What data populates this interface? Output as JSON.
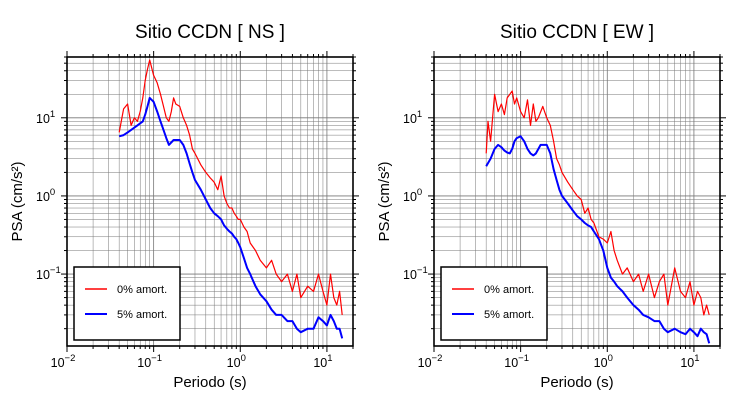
{
  "chart_data": [
    {
      "type": "line",
      "title": "Sitio CCDN [ NS ]",
      "xlabel": "Periodo (s)",
      "ylabel": "PSA (cm/s²)",
      "xscale": "log",
      "yscale": "log",
      "xlim": [
        0.01,
        20
      ],
      "ylim": [
        0.012,
        60
      ],
      "xticks": [
        {
          "value": 0.01,
          "base": "10",
          "exp": "−2"
        },
        {
          "value": 0.1,
          "base": "10",
          "exp": "−1"
        },
        {
          "value": 1,
          "base": "10",
          "exp": "0"
        },
        {
          "value": 10,
          "base": "10",
          "exp": "1"
        }
      ],
      "yticks": [
        {
          "value": 0.1,
          "base": "10",
          "exp": "−1"
        },
        {
          "value": 1,
          "base": "10",
          "exp": "0"
        },
        {
          "value": 10,
          "base": "10",
          "exp": "1"
        }
      ],
      "grid": true,
      "legend_position": "bottom-left",
      "series": [
        {
          "name": "0% amort.",
          "color": "#ff0000",
          "x": [
            0.04,
            0.045,
            0.05,
            0.055,
            0.06,
            0.065,
            0.07,
            0.075,
            0.08,
            0.085,
            0.09,
            0.1,
            0.11,
            0.12,
            0.13,
            0.14,
            0.15,
            0.16,
            0.17,
            0.18,
            0.2,
            0.22,
            0.24,
            0.26,
            0.28,
            0.3,
            0.35,
            0.4,
            0.45,
            0.5,
            0.55,
            0.6,
            0.65,
            0.7,
            0.75,
            0.8,
            0.85,
            0.9,
            0.95,
            1.0,
            1.1,
            1.2,
            1.3,
            1.5,
            1.7,
            2.0,
            2.3,
            2.6,
            3.0,
            3.5,
            4.0,
            4.5,
            5.0,
            6.0,
            7.0,
            8.0,
            9.0,
            10.0,
            11.0,
            12.0,
            13.0,
            14.0,
            15.0
          ],
          "y": [
            6.5,
            13,
            15,
            8,
            10,
            9,
            12,
            18,
            30,
            42,
            55,
            35,
            28,
            20,
            14,
            10,
            9,
            12,
            18,
            15,
            14,
            10,
            8,
            6,
            4,
            3.5,
            2.5,
            2.0,
            1.7,
            1.5,
            1.2,
            1.8,
            1.0,
            0.8,
            0.7,
            0.7,
            0.6,
            0.55,
            0.5,
            0.5,
            0.4,
            0.35,
            0.25,
            0.2,
            0.15,
            0.12,
            0.15,
            0.1,
            0.08,
            0.1,
            0.06,
            0.1,
            0.05,
            0.07,
            0.06,
            0.1,
            0.06,
            0.04,
            0.1,
            0.05,
            0.04,
            0.06,
            0.03
          ]
        },
        {
          "name": "5% amort.",
          "color": "#0000ff",
          "x": [
            0.04,
            0.045,
            0.05,
            0.055,
            0.06,
            0.065,
            0.07,
            0.075,
            0.08,
            0.085,
            0.09,
            0.1,
            0.11,
            0.12,
            0.13,
            0.14,
            0.15,
            0.17,
            0.2,
            0.22,
            0.24,
            0.26,
            0.28,
            0.3,
            0.35,
            0.4,
            0.45,
            0.5,
            0.55,
            0.6,
            0.65,
            0.7,
            0.75,
            0.8,
            0.85,
            0.9,
            0.95,
            1.0,
            1.1,
            1.2,
            1.3,
            1.5,
            1.7,
            2.0,
            2.3,
            2.6,
            3.0,
            3.5,
            4.0,
            4.5,
            5.0,
            6.0,
            7.0,
            8.0,
            9.0,
            10.0,
            11.0,
            12.0,
            13.0,
            14.0,
            15.0
          ],
          "y": [
            5.8,
            6.0,
            6.5,
            7,
            7.5,
            8,
            8.5,
            9,
            11,
            14,
            18,
            16,
            12,
            9,
            7,
            5.5,
            4.5,
            5.2,
            5.2,
            4.5,
            3.5,
            2.6,
            2.0,
            1.6,
            1.2,
            0.9,
            0.7,
            0.6,
            0.55,
            0.5,
            0.42,
            0.38,
            0.35,
            0.33,
            0.3,
            0.28,
            0.25,
            0.22,
            0.16,
            0.12,
            0.1,
            0.07,
            0.055,
            0.045,
            0.035,
            0.03,
            0.03,
            0.025,
            0.025,
            0.02,
            0.018,
            0.02,
            0.02,
            0.028,
            0.025,
            0.022,
            0.03,
            0.025,
            0.02,
            0.02,
            0.015
          ]
        }
      ]
    },
    {
      "type": "line",
      "title": "Sitio CCDN [ EW ]",
      "xlabel": "Periodo (s)",
      "ylabel": "PSA (cm/s²)",
      "xscale": "log",
      "yscale": "log",
      "xlim": [
        0.01,
        20
      ],
      "ylim": [
        0.012,
        60
      ],
      "xticks": [
        {
          "value": 0.01,
          "base": "10",
          "exp": "−2"
        },
        {
          "value": 0.1,
          "base": "10",
          "exp": "−1"
        },
        {
          "value": 1,
          "base": "10",
          "exp": "0"
        },
        {
          "value": 10,
          "base": "10",
          "exp": "1"
        }
      ],
      "yticks": [
        {
          "value": 0.1,
          "base": "10",
          "exp": "−1"
        },
        {
          "value": 1,
          "base": "10",
          "exp": "0"
        },
        {
          "value": 10,
          "base": "10",
          "exp": "1"
        }
      ],
      "grid": true,
      "legend_position": "bottom-left",
      "series": [
        {
          "name": "0% amort.",
          "color": "#ff0000",
          "x": [
            0.04,
            0.042,
            0.045,
            0.05,
            0.055,
            0.06,
            0.065,
            0.07,
            0.075,
            0.08,
            0.085,
            0.09,
            0.1,
            0.11,
            0.12,
            0.13,
            0.14,
            0.15,
            0.16,
            0.18,
            0.2,
            0.22,
            0.24,
            0.26,
            0.28,
            0.3,
            0.35,
            0.4,
            0.45,
            0.5,
            0.55,
            0.6,
            0.65,
            0.7,
            0.8,
            0.9,
            1.0,
            1.1,
            1.2,
            1.3,
            1.5,
            1.7,
            2.0,
            2.3,
            2.6,
            3.0,
            3.5,
            4.0,
            4.5,
            5.0,
            6.0,
            7.0,
            8.0,
            9.0,
            10.0,
            11.0,
            12.0,
            13.0,
            14.0,
            15.0
          ],
          "y": [
            3.5,
            9,
            5,
            20,
            12,
            15,
            11,
            18,
            20,
            22,
            15,
            18,
            12,
            10,
            17,
            8,
            15,
            9,
            10,
            14,
            10,
            8,
            5,
            3,
            2.5,
            2.0,
            1.5,
            1.2,
            1.0,
            0.9,
            0.6,
            0.7,
            0.5,
            0.45,
            0.3,
            0.28,
            0.25,
            0.35,
            0.2,
            0.15,
            0.1,
            0.12,
            0.08,
            0.1,
            0.06,
            0.1,
            0.05,
            0.08,
            0.1,
            0.04,
            0.12,
            0.06,
            0.05,
            0.08,
            0.04,
            0.06,
            0.05,
            0.03,
            0.04,
            0.03
          ]
        },
        {
          "name": "5% amort.",
          "color": "#0000ff",
          "x": [
            0.04,
            0.045,
            0.05,
            0.055,
            0.06,
            0.065,
            0.07,
            0.075,
            0.08,
            0.085,
            0.09,
            0.1,
            0.11,
            0.12,
            0.13,
            0.14,
            0.15,
            0.17,
            0.2,
            0.22,
            0.24,
            0.26,
            0.28,
            0.3,
            0.35,
            0.4,
            0.45,
            0.5,
            0.55,
            0.6,
            0.65,
            0.7,
            0.8,
            0.9,
            1.0,
            1.1,
            1.2,
            1.3,
            1.5,
            1.7,
            2.0,
            2.3,
            2.6,
            3.0,
            3.5,
            4.0,
            4.5,
            5.0,
            6.0,
            7.0,
            8.0,
            9.0,
            10.0,
            11.0,
            12.0,
            13.0,
            14.0,
            15.0
          ],
          "y": [
            2.4,
            3.0,
            4.0,
            4.5,
            4.2,
            3.8,
            3.6,
            3.5,
            4.0,
            5.0,
            5.5,
            5.8,
            5.0,
            4.0,
            3.5,
            3.3,
            3.5,
            4.5,
            4.5,
            3.5,
            2.2,
            1.6,
            1.2,
            1.0,
            0.8,
            0.65,
            0.55,
            0.5,
            0.45,
            0.42,
            0.4,
            0.35,
            0.28,
            0.2,
            0.12,
            0.09,
            0.08,
            0.07,
            0.06,
            0.05,
            0.04,
            0.035,
            0.03,
            0.028,
            0.025,
            0.025,
            0.02,
            0.018,
            0.02,
            0.018,
            0.017,
            0.02,
            0.018,
            0.016,
            0.02,
            0.018,
            0.017,
            0.013
          ]
        }
      ]
    }
  ]
}
